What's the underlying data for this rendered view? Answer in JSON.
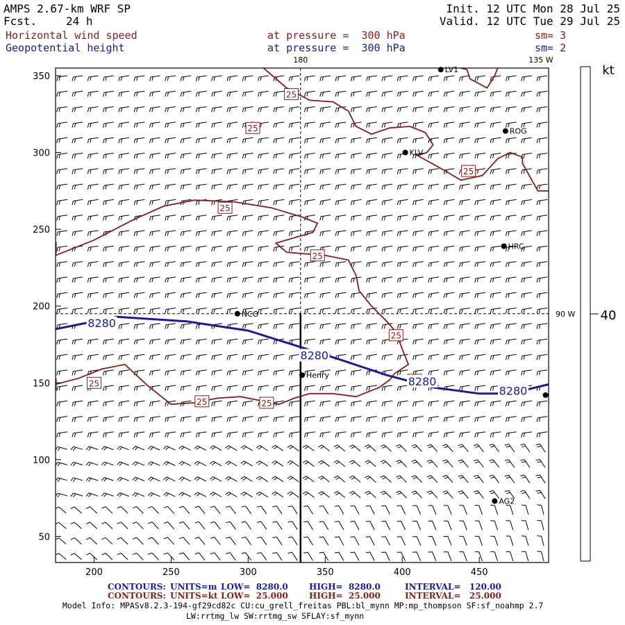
{
  "header": {
    "model": "AMPS 2.67-km WRF SP",
    "fcst_label": "Fcst.",
    "fcst_value": "24 h",
    "init": "Init. 12 UTC Mon 28 Jul 25",
    "valid": "Valid. 12 UTC Tue 29 Jul 25",
    "field1": "Horizontal wind speed",
    "field1_level": "at pressure =  300 hPa",
    "field1_sm": "sm= 3",
    "field2": "Geopotential height",
    "field2_level": "at pressure =  300 hPa",
    "field2_sm": "sm= 2"
  },
  "colors": {
    "speed_contour": "#8b1a1a",
    "height_contour": "#1a1a9c",
    "barbs": "#000000"
  },
  "chart_data": {
    "type": "contour-map",
    "x_range": [
      175,
      495
    ],
    "y_range": [
      33,
      355
    ],
    "x_ticks": [
      "200",
      "250",
      "300",
      "350",
      "400",
      "450"
    ],
    "y_ticks": [
      "50",
      "100",
      "150",
      "200",
      "250",
      "300",
      "350"
    ],
    "meridians": [
      {
        "label": "180",
        "x": 334
      },
      {
        "label": "135 W",
        "x": 490
      },
      {
        "label": "90 W",
        "y": 195
      }
    ],
    "stations": [
      {
        "name": "LV1",
        "x": 425,
        "y": 354
      },
      {
        "name": "ROG",
        "x": 467,
        "y": 314
      },
      {
        "name": "KLV",
        "x": 402,
        "y": 300
      },
      {
        "name": "HRC",
        "x": 466,
        "y": 239
      },
      {
        "name": "NCO",
        "x": 293,
        "y": 195
      },
      {
        "name": "Henry",
        "x": 335,
        "y": 155
      },
      {
        "name": "",
        "x": 493,
        "y": 142
      },
      {
        "name": "AG2",
        "x": 460,
        "y": 73
      }
    ],
    "height_contour": {
      "value_label": "8280",
      "points": [
        [
          175,
          185
        ],
        [
          215,
          193
        ],
        [
          260,
          190
        ],
        [
          300,
          184
        ],
        [
          335,
          173
        ],
        [
          360,
          165
        ],
        [
          390,
          155
        ],
        [
          420,
          147
        ],
        [
          450,
          143
        ],
        [
          470,
          143
        ],
        [
          495,
          149
        ]
      ],
      "label_positions": [
        [
          205,
          189
        ],
        [
          343,
          168
        ],
        [
          413,
          151
        ],
        [
          472,
          145
        ]
      ]
    },
    "speed_contours": {
      "value_label": "25",
      "lines": [
        [
          [
            175,
            233
          ],
          [
            185,
            237
          ],
          [
            200,
            243
          ],
          [
            225,
            256
          ],
          [
            245,
            265
          ],
          [
            265,
            269
          ],
          [
            290,
            268
          ],
          [
            315,
            264
          ],
          [
            335,
            258
          ],
          [
            345,
            254
          ],
          [
            342,
            248
          ],
          [
            318,
            241
          ],
          [
            325,
            235
          ],
          [
            350,
            233
          ],
          [
            365,
            230
          ],
          [
            370,
            220
          ],
          [
            372,
            210
          ],
          [
            380,
            200
          ],
          [
            390,
            190
          ],
          [
            396,
            183
          ],
          [
            400,
            172
          ],
          [
            404,
            162
          ],
          [
            395,
            156
          ],
          [
            392,
            152
          ],
          [
            385,
            147
          ],
          [
            370,
            141
          ],
          [
            355,
            143
          ],
          [
            340,
            143
          ],
          [
            330,
            140
          ],
          [
            320,
            136
          ],
          [
            310,
            138
          ],
          [
            295,
            141
          ],
          [
            280,
            140
          ],
          [
            265,
            137
          ],
          [
            250,
            136
          ],
          [
            235,
            148
          ],
          [
            220,
            162
          ],
          [
            205,
            159
          ],
          [
            190,
            153
          ],
          [
            175,
            149
          ]
        ],
        [
          [
            310,
            355
          ],
          [
            325,
            342
          ],
          [
            340,
            334
          ],
          [
            355,
            333
          ],
          [
            365,
            327
          ],
          [
            370,
            317
          ],
          [
            380,
            312
          ],
          [
            392,
            316
          ],
          [
            405,
            317
          ],
          [
            415,
            313
          ],
          [
            420,
            305
          ],
          [
            416,
            300
          ],
          [
            410,
            298
          ],
          [
            428,
            288
          ],
          [
            438,
            282
          ],
          [
            452,
            285
          ],
          [
            462,
            296
          ],
          [
            470,
            300
          ],
          [
            478,
            297
          ],
          [
            478,
            293
          ],
          [
            488,
            275
          ],
          [
            495,
            275
          ]
        ],
        [
          [
            438,
            355
          ],
          [
            442,
            354
          ],
          [
            444,
            348
          ],
          [
            455,
            342
          ],
          [
            460,
            350
          ],
          [
            462,
            355
          ]
        ]
      ],
      "label_positions": [
        [
          328,
          338
        ],
        [
          303,
          316
        ],
        [
          285,
          264
        ],
        [
          171,
          238
        ],
        [
          345,
          233
        ],
        [
          396,
          181
        ],
        [
          200,
          150
        ],
        [
          171,
          149
        ],
        [
          270,
          138
        ],
        [
          312,
          137
        ],
        [
          443,
          288
        ],
        [
          408,
          152
        ]
      ]
    },
    "barb_speed_units": "kt",
    "colorbar": {
      "unit_label": "kt",
      "tick_label": "40"
    },
    "footer": {
      "contours_line1": {
        "label": "CONTOURS:",
        "units": "UNITS=m",
        "low": "LOW=  8280.0",
        "high": "HIGH=  8280.0",
        "interval": "INTERVAL=   120.00"
      },
      "contours_line2": {
        "label": "CONTOURS:",
        "units": "UNITS=kt",
        "low": "LOW=  25.000",
        "high": "HIGH=  25.000",
        "interval": "INTERVAL=   25.000"
      },
      "model_info": "Model Info: MPASv8.2.3-194-gf29cd82c CU:cu_grell_freitas PBL:bl_mynn MP:mp_thompson SF:sf_noahmp 2.7",
      "model_info2": "LW:rrtmg_lw SW:rrtmg_sw SFLAY:sf_mynn"
    }
  }
}
